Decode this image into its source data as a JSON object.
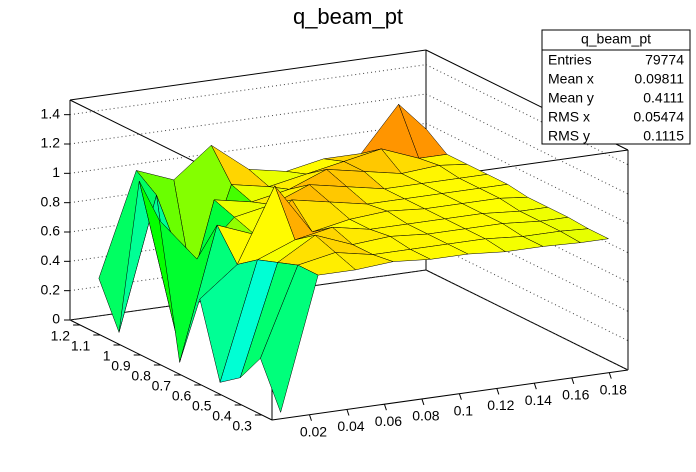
{
  "chart_data": {
    "type": "surface",
    "title": "q_beam_pt",
    "x": [
      0.01,
      0.03,
      0.05,
      0.07,
      0.09,
      0.11,
      0.13,
      0.15,
      0.17,
      0.185
    ],
    "y": [
      0.3,
      0.4,
      0.5,
      0.6,
      0.7,
      0.8,
      0.9,
      1,
      1.1,
      1.2
    ],
    "z": [
      [
        0.0,
        0.9,
        0.9,
        0.92,
        0.9,
        0.9,
        0.88,
        0.88,
        0.87,
        0.87
      ],
      [
        0.3,
        0.9,
        0.95,
        0.9,
        0.9,
        0.9,
        0.9,
        0.88,
        0.88,
        0.87
      ],
      [
        0.1,
        0.85,
        1.0,
        0.9,
        0.92,
        0.9,
        0.9,
        0.9,
        0.88,
        0.88
      ],
      [
        0.0,
        0.8,
        0.9,
        0.95,
        0.9,
        0.9,
        0.9,
        0.9,
        0.88,
        0.88
      ],
      [
        0.5,
        0.7,
        1.2,
        0.85,
        0.9,
        0.92,
        0.9,
        0.9,
        0.9,
        0.88
      ],
      [
        0.0,
        0.9,
        0.8,
        1.0,
        0.95,
        0.9,
        0.9,
        0.9,
        0.9,
        0.9
      ],
      [
        0.9,
        0.6,
        0.85,
        0.9,
        1.0,
        0.95,
        0.9,
        0.9,
        0.9,
        0.9
      ],
      [
        1.1,
        0.0,
        0.9,
        0.85,
        0.9,
        1.0,
        0.95,
        0.9,
        0.92,
        0.9
      ],
      [
        0.0,
        0.9,
        0.2,
        0.9,
        0.85,
        0.9,
        0.95,
        1.0,
        0.9,
        0.9
      ],
      [
        0.3,
        1.0,
        0.9,
        1.1,
        0.9,
        0.85,
        0.9,
        0.9,
        1.2,
        1.0
      ]
    ],
    "xlim": [
      0,
      0.19
    ],
    "ylim": [
      0.25,
      1.25
    ],
    "zlim": [
      0,
      1.5
    ],
    "xticks": [
      0.02,
      0.04,
      0.06,
      0.08,
      0.1,
      0.12,
      0.14,
      0.16,
      0.18
    ],
    "yticks": [
      0.3,
      0.4,
      0.5,
      0.6,
      0.7,
      0.8,
      0.9,
      1,
      1.1,
      1.2
    ],
    "zticks": [
      0,
      0.2,
      0.4,
      0.6,
      0.8,
      1,
      1.2,
      1.4
    ],
    "grid": true,
    "stats": {
      "title": "q_beam_pt",
      "rows": [
        {
          "label": "Entries",
          "value": 79774
        },
        {
          "label": "Mean x",
          "value": 0.09811
        },
        {
          "label": "Mean y",
          "value": 0.4111
        },
        {
          "label": "RMS x",
          "value": 0.05474
        },
        {
          "label": "RMS y",
          "value": 0.1115
        }
      ]
    }
  }
}
